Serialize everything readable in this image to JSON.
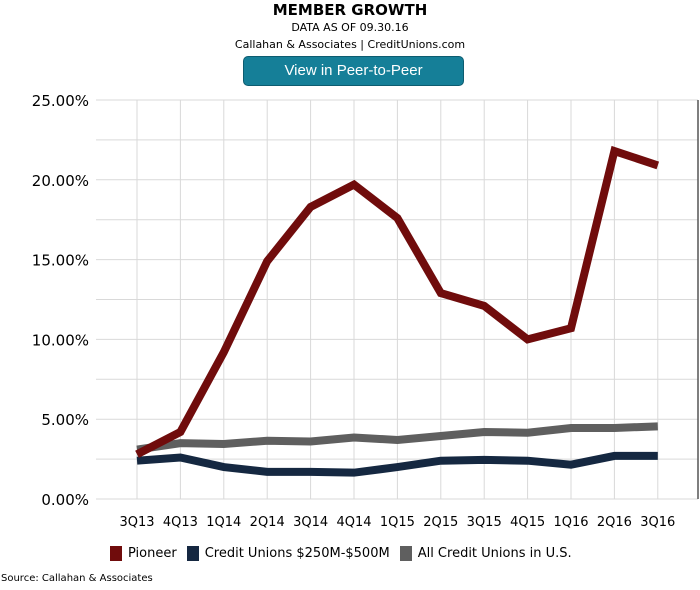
{
  "header": {
    "title": "MEMBER GROWTH",
    "subtitle": "DATA AS OF 09.30.16",
    "attribution": "Callahan & Associates | CreditUnions.com",
    "button_label": "View in Peer-to-Peer"
  },
  "footer": {
    "source": "Source: Callahan & Associates"
  },
  "chart_data": {
    "type": "line",
    "title": "MEMBER GROWTH",
    "categories": [
      "3Q13",
      "4Q13",
      "1Q14",
      "2Q14",
      "3Q14",
      "4Q14",
      "1Q15",
      "2Q15",
      "3Q15",
      "4Q15",
      "1Q16",
      "2Q16",
      "3Q16"
    ],
    "ylim": [
      0,
      25
    ],
    "yticks": [
      "0.00%",
      "5.00%",
      "10.00%",
      "15.00%",
      "20.00%",
      "25.00%"
    ],
    "grid": true,
    "legend": "bottom",
    "series": [
      {
        "name": "Pioneer",
        "color": "#700c0c",
        "values": [
          2.8,
          4.2,
          9.2,
          14.9,
          18.3,
          19.7,
          17.6,
          12.9,
          12.1,
          10.0,
          10.7,
          21.8,
          20.9
        ]
      },
      {
        "name": "Credit Unions $250M-$500M",
        "color": "#152841",
        "values": [
          2.4,
          2.6,
          2.0,
          1.7,
          1.7,
          1.65,
          2.0,
          2.4,
          2.45,
          2.4,
          2.15,
          2.7,
          2.7
        ]
      },
      {
        "name": "All Credit Unions in U.S.",
        "color": "#5f5f5f",
        "values": [
          3.1,
          3.5,
          3.45,
          3.65,
          3.6,
          3.85,
          3.7,
          3.95,
          4.2,
          4.15,
          4.45,
          4.45,
          4.55
        ]
      }
    ]
  }
}
